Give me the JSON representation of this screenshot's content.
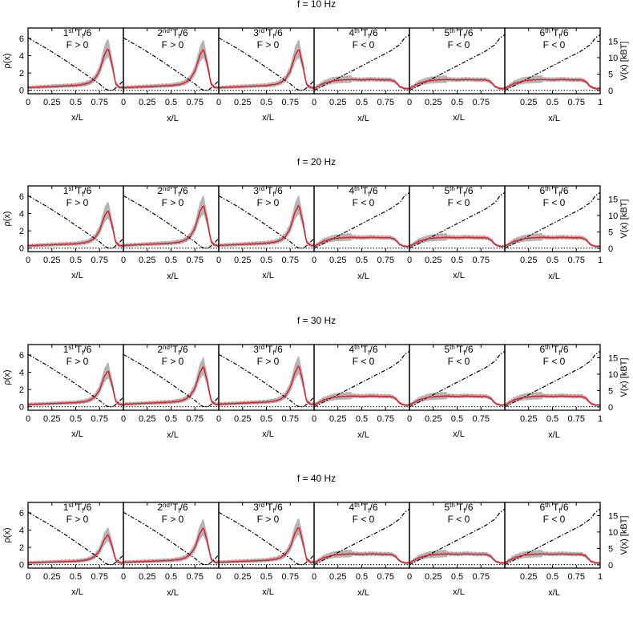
{
  "figure": {
    "row_titles": [
      "f = 10 Hz",
      "f = 20 Hz",
      "f = 30 Hz",
      "f = 40 Hz"
    ],
    "y_left_label": "ρ(x)",
    "y_right_label": "V(x) [kBT]",
    "x_label": "x/L",
    "x_ticks": [
      "0",
      "0.25",
      "0.5",
      "0.75",
      "1"
    ],
    "y_left_ticks": [
      0,
      2,
      4,
      6
    ],
    "y_right_ticks": [
      0,
      5,
      10,
      15
    ],
    "panel_labels": [
      {
        "ord": "1",
        "sup": "st",
        "rest": " T",
        "sub": "f",
        "tail": "/6",
        "force": "F > 0"
      },
      {
        "ord": "2",
        "sup": "nd",
        "rest": " T",
        "sub": "f",
        "tail": "/6",
        "force": "F > 0"
      },
      {
        "ord": "3",
        "sup": "rd",
        "rest": " T",
        "sub": "f",
        "tail": "/6",
        "force": "F > 0"
      },
      {
        "ord": "4",
        "sup": "th",
        "rest": " T",
        "sub": "f",
        "tail": "/6",
        "force": "F < 0"
      },
      {
        "ord": "5",
        "sup": "th",
        "rest": " T",
        "sub": "f",
        "tail": "/6",
        "force": "F < 0"
      },
      {
        "ord": "6",
        "sup": "th",
        "rest": " T",
        "sub": "f",
        "tail": "/6",
        "force": "F < 0"
      }
    ],
    "colors": {
      "density": "#e8141e",
      "band": "#b4b4b4",
      "potential": "#000000",
      "axes": "#000000"
    }
  },
  "chart_data": {
    "type": "line",
    "rows": 4,
    "columns": 6,
    "xlim": [
      0,
      1
    ],
    "ylim_left": [
      -0.4,
      7.2
    ],
    "ylim_right": [
      -1,
      19
    ],
    "rows_data": [
      {
        "f": "10 Hz",
        "peak_heights": [
          4.9,
          4.8,
          4.8,
          1.2,
          1.3,
          1.3
        ]
      },
      {
        "f": "20 Hz",
        "peak_heights": [
          4.4,
          5.0,
          5.0,
          1.2,
          1.2,
          1.2
        ]
      },
      {
        "f": "30 Hz",
        "peak_heights": [
          4.2,
          4.7,
          4.8,
          1.2,
          1.2,
          1.2
        ]
      },
      {
        "f": "40 Hz",
        "peak_heights": [
          3.5,
          4.3,
          4.4,
          1.2,
          1.1,
          1.2
        ]
      }
    ],
    "density_positive_force": {
      "x": [
        0,
        0.1,
        0.2,
        0.3,
        0.4,
        0.5,
        0.6,
        0.65,
        0.7,
        0.75,
        0.8,
        0.84,
        0.88,
        0.92,
        0.96,
        1.0
      ],
      "y": [
        0.3,
        0.35,
        0.4,
        0.45,
        0.5,
        0.55,
        0.7,
        0.9,
        1.3,
        2.2,
        4.0,
        4.8,
        3.0,
        0.7,
        0.3,
        0.3
      ]
    },
    "density_negative_force": {
      "x": [
        0,
        0.05,
        0.1,
        0.2,
        0.3,
        0.4,
        0.5,
        0.6,
        0.7,
        0.8,
        0.85,
        0.9,
        0.95,
        1.0
      ],
      "y": [
        0.2,
        0.5,
        0.8,
        1.1,
        1.2,
        1.25,
        1.2,
        1.25,
        1.2,
        1.2,
        1.0,
        0.4,
        0.2,
        0.2
      ]
    },
    "potential_positive_force": {
      "x": [
        0,
        0.2,
        0.4,
        0.6,
        0.75,
        0.82,
        0.86,
        0.9,
        0.95,
        1.0
      ],
      "y": [
        16,
        12.7,
        9,
        5,
        2,
        0.3,
        0,
        0.3,
        1.5,
        3
      ]
    },
    "potential_negative_force": {
      "x": [
        0,
        0.2,
        0.4,
        0.6,
        0.8,
        0.9,
        0.95,
        1.0
      ],
      "y": [
        0,
        3,
        6,
        9,
        12,
        14,
        16,
        17
      ]
    }
  }
}
